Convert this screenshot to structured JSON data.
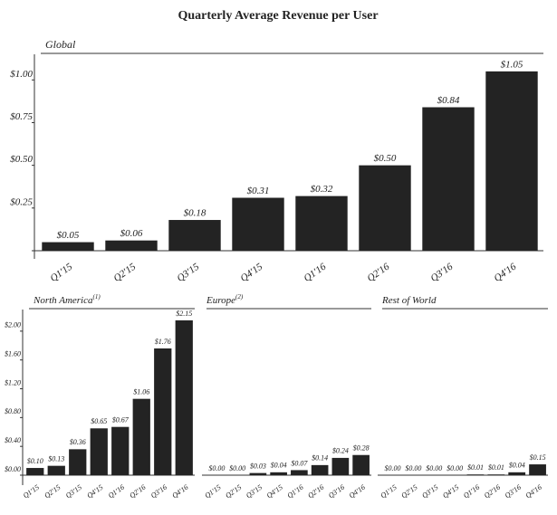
{
  "title": "Quarterly Average Revenue per User",
  "chart_data": [
    {
      "type": "bar",
      "title": "Global",
      "color": "#232323",
      "categories": [
        "Q1'15",
        "Q2'15",
        "Q3'15",
        "Q4'15",
        "Q1'16",
        "Q2'16",
        "Q3'16",
        "Q4'16"
      ],
      "values": [
        0.05,
        0.06,
        0.18,
        0.31,
        0.32,
        0.5,
        0.84,
        1.05
      ],
      "value_labels": [
        "$0.05",
        "$0.06",
        "$0.18",
        "$0.31",
        "$0.32",
        "$0.50",
        "$0.84",
        "$1.05"
      ],
      "ylim": [
        0,
        1.15
      ],
      "yticks": [
        {
          "value": 0.25,
          "label": "$0.25"
        },
        {
          "value": 0.5,
          "label": "$0.50"
        },
        {
          "value": 0.75,
          "label": "$0.75"
        },
        {
          "value": 1.0,
          "label": "$1.00"
        }
      ]
    },
    {
      "type": "bar",
      "title": "North America",
      "footnote": "(1)",
      "color": "#232323",
      "categories": [
        "Q1'15",
        "Q2'15",
        "Q3'15",
        "Q4'15",
        "Q1'16",
        "Q2'16",
        "Q3'16",
        "Q4'16"
      ],
      "values": [
        0.1,
        0.13,
        0.36,
        0.65,
        0.67,
        1.06,
        1.76,
        2.15
      ],
      "value_labels": [
        "$0.10",
        "$0.13",
        "$0.36",
        "$0.65",
        "$0.67",
        "$1.06",
        "$1.76",
        "$2.15"
      ],
      "ylim": [
        0,
        2.3
      ],
      "yticks": [
        {
          "value": 0,
          "label": "$0.00"
        },
        {
          "value": 0.4,
          "label": "$0.40"
        },
        {
          "value": 0.8,
          "label": "$0.80"
        },
        {
          "value": 1.2,
          "label": "$1.20"
        },
        {
          "value": 1.6,
          "label": "$1.60"
        },
        {
          "value": 2.0,
          "label": "$2.00"
        }
      ]
    },
    {
      "type": "bar",
      "title": "Europe",
      "footnote": "(2)",
      "color": "#232323",
      "categories": [
        "Q1'15",
        "Q2'15",
        "Q3'15",
        "Q4'15",
        "Q1'16",
        "Q2'16",
        "Q3'16",
        "Q4'16"
      ],
      "values": [
        0.0,
        0.0,
        0.03,
        0.04,
        0.07,
        0.14,
        0.24,
        0.28
      ],
      "value_labels": [
        "$0.00",
        "$0.00",
        "$0.03",
        "$0.04",
        "$0.07",
        "$0.14",
        "$0.24",
        "$0.28"
      ],
      "ylim": [
        0,
        2.3
      ]
    },
    {
      "type": "bar",
      "title": "Rest of World",
      "color": "#232323",
      "categories": [
        "Q1'15",
        "Q2'15",
        "Q3'15",
        "Q4'15",
        "Q1'16",
        "Q2'16",
        "Q3'16",
        "Q4'16"
      ],
      "values": [
        0.0,
        0.0,
        0.0,
        0.0,
        0.01,
        0.01,
        0.04,
        0.15
      ],
      "value_labels": [
        "$0.00",
        "$0.00",
        "$0.00",
        "$0.00",
        "$0.01",
        "$0.01",
        "$0.04",
        "$0.15"
      ],
      "ylim": [
        0,
        2.3
      ]
    }
  ]
}
